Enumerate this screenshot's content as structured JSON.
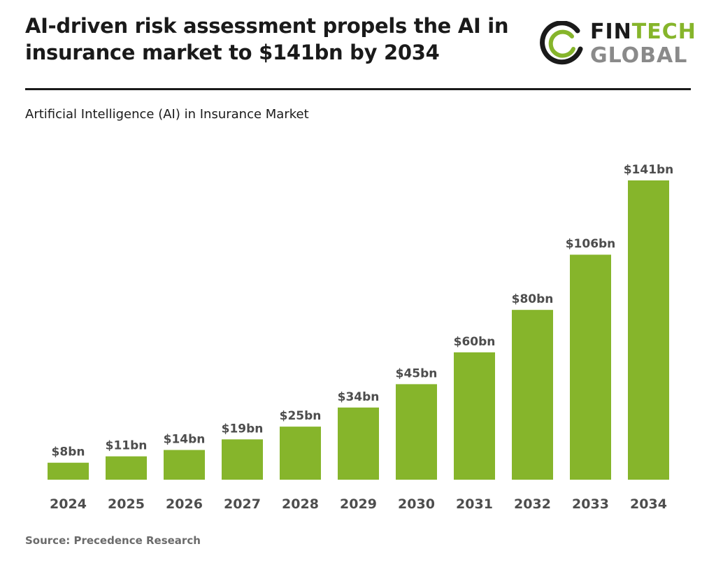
{
  "header": {
    "title": "AI-driven risk assessment propels the AI in insurance market to $141bn by 2034"
  },
  "logo": {
    "line1_part1": "FIN",
    "line1_part2": "TECH",
    "line2": "GLOBAL",
    "colors": {
      "dark": "#1a1a1a",
      "green": "#86b52b",
      "grey": "#8a8a8a"
    }
  },
  "subtitle": "Artificial Intelligence (AI) in Insurance Market",
  "source": "Source: Precedence Research",
  "colors": {
    "bar": "#86b52b",
    "label": "#4d4d4d",
    "rule": "#1a1a1a"
  },
  "chart_data": {
    "type": "bar",
    "title": "Artificial Intelligence (AI) in Insurance Market",
    "xlabel": "",
    "ylabel": "",
    "categories": [
      "2024",
      "2025",
      "2026",
      "2027",
      "2028",
      "2029",
      "2030",
      "2031",
      "2032",
      "2033",
      "2034"
    ],
    "values": [
      8,
      11,
      14,
      19,
      25,
      34,
      45,
      60,
      80,
      106,
      141
    ],
    "data_labels": [
      "$8bn",
      "$11bn",
      "$14bn",
      "$19bn",
      "$25bn",
      "$34bn",
      "$45bn",
      "$60bn",
      "$80bn",
      "$106bn",
      "$141bn"
    ],
    "unit": "$bn",
    "ylim": [
      0,
      141
    ],
    "grid": false,
    "legend": "none"
  }
}
